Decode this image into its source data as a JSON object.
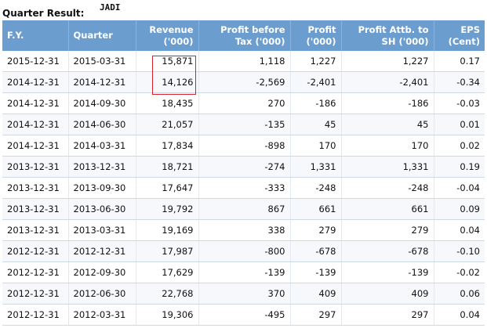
{
  "page": {
    "title_label": "Quarter Result:",
    "ticker": "JADI"
  },
  "table": {
    "headers": {
      "fy": "F.Y.",
      "quarter": "Quarter",
      "revenue_line1": "Revenue",
      "revenue_line2": "('000)",
      "pbt_line1": "Profit before",
      "pbt_line2": "Tax ('000)",
      "profit_line1": "Profit",
      "profit_line2": "('000)",
      "profit_sh_line1": "Profit Attb. to",
      "profit_sh_line2": "SH ('000)",
      "eps_line1": "EPS",
      "eps_line2": "(Cent)"
    },
    "rows": [
      {
        "fy": "2015-12-31",
        "quarter": "2015-03-31",
        "revenue": "15,871",
        "pbt": "1,118",
        "profit": "1,227",
        "profit_sh": "1,227",
        "eps": "0.17"
      },
      {
        "fy": "2014-12-31",
        "quarter": "2014-12-31",
        "revenue": "14,126",
        "pbt": "-2,569",
        "profit": "-2,401",
        "profit_sh": "-2,401",
        "eps": "-0.34"
      },
      {
        "fy": "2014-12-31",
        "quarter": "2014-09-30",
        "revenue": "18,435",
        "pbt": "270",
        "profit": "-186",
        "profit_sh": "-186",
        "eps": "-0.03"
      },
      {
        "fy": "2014-12-31",
        "quarter": "2014-06-30",
        "revenue": "21,057",
        "pbt": "-135",
        "profit": "45",
        "profit_sh": "45",
        "eps": "0.01"
      },
      {
        "fy": "2014-12-31",
        "quarter": "2014-03-31",
        "revenue": "17,834",
        "pbt": "-898",
        "profit": "170",
        "profit_sh": "170",
        "eps": "0.02"
      },
      {
        "fy": "2013-12-31",
        "quarter": "2013-12-31",
        "revenue": "18,721",
        "pbt": "-274",
        "profit": "1,331",
        "profit_sh": "1,331",
        "eps": "0.19"
      },
      {
        "fy": "2013-12-31",
        "quarter": "2013-09-30",
        "revenue": "17,647",
        "pbt": "-333",
        "profit": "-248",
        "profit_sh": "-248",
        "eps": "-0.04"
      },
      {
        "fy": "2013-12-31",
        "quarter": "2013-06-30",
        "revenue": "19,792",
        "pbt": "867",
        "profit": "661",
        "profit_sh": "661",
        "eps": "0.09"
      },
      {
        "fy": "2013-12-31",
        "quarter": "2013-03-31",
        "revenue": "19,169",
        "pbt": "338",
        "profit": "279",
        "profit_sh": "279",
        "eps": "0.04"
      },
      {
        "fy": "2012-12-31",
        "quarter": "2012-12-31",
        "revenue": "17,987",
        "pbt": "-800",
        "profit": "-678",
        "profit_sh": "-678",
        "eps": "-0.10"
      },
      {
        "fy": "2012-12-31",
        "quarter": "2012-09-30",
        "revenue": "17,629",
        "pbt": "-139",
        "profit": "-139",
        "profit_sh": "-139",
        "eps": "-0.02"
      },
      {
        "fy": "2012-12-31",
        "quarter": "2012-06-30",
        "revenue": "22,768",
        "pbt": "370",
        "profit": "409",
        "profit_sh": "409",
        "eps": "0.06"
      },
      {
        "fy": "2012-12-31",
        "quarter": "2012-03-31",
        "revenue": "19,306",
        "pbt": "-495",
        "profit": "297",
        "profit_sh": "297",
        "eps": "0.04"
      }
    ]
  },
  "colors": {
    "header_bg": "#6b9dcf",
    "header_text": "#ffffff",
    "highlight_border": "#d9212a"
  }
}
